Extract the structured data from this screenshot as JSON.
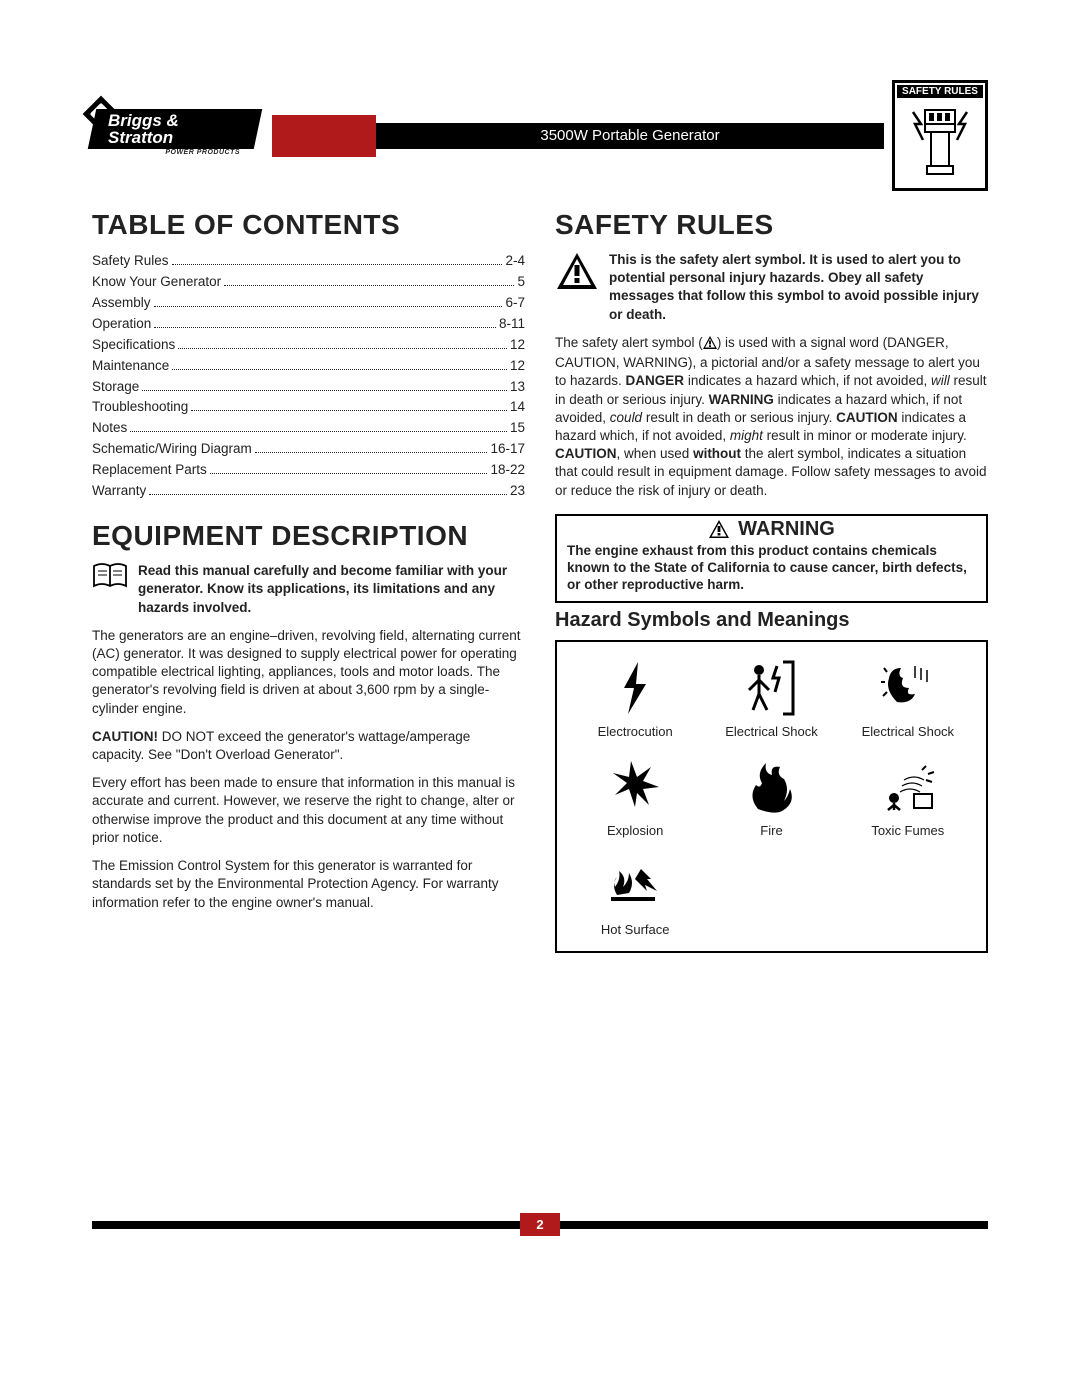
{
  "header": {
    "brand_top": "Briggs & Stratton",
    "brand_sub": "POWER PRODUCTS",
    "title": "3500W Portable Generator",
    "badge_title": "SAFETY RULES"
  },
  "toc_heading": "TABLE OF CONTENTS",
  "toc": [
    {
      "label": "Safety Rules",
      "page": "2-4"
    },
    {
      "label": "Know Your Generator",
      "page": "5"
    },
    {
      "label": "Assembly",
      "page": "6-7"
    },
    {
      "label": "Operation",
      "page": "8-11"
    },
    {
      "label": "Specifications",
      "page": "12"
    },
    {
      "label": "Maintenance",
      "page": "12"
    },
    {
      "label": "Storage",
      "page": "13"
    },
    {
      "label": "Troubleshooting",
      "page": "14"
    },
    {
      "label": "Notes",
      "page": "15"
    },
    {
      "label": "Schematic/Wiring Diagram",
      "page": "16-17"
    },
    {
      "label": "Replacement Parts",
      "page": "18-22"
    },
    {
      "label": "Warranty",
      "page": "23"
    }
  ],
  "equipment": {
    "heading": "EQUIPMENT DESCRIPTION",
    "read_manual": "Read this manual carefully and become familiar with your generator. Know its applications, its limitations and any hazards involved.",
    "p1": "The generators are an engine–driven, revolving field, alternating current (AC) generator. It was designed to supply electrical power for operating compatible electrical lighting, appliances, tools and motor loads. The generator's revolving field is driven at about 3,600 rpm by a single-cylinder engine.",
    "caution_lead": "CAUTION!",
    "caution_rest": " DO NOT exceed the generator's wattage/amperage capacity. See \"Don't Overload Generator\".",
    "p2": "Every effort has been made to ensure that information in this manual is accurate and current. However, we reserve the right to change, alter or otherwise improve the product and this document at any time without prior notice.",
    "p3": "The Emission Control System for this generator is warranted for standards set by the Environmental Protection Agency. For warranty information refer to the engine owner's manual."
  },
  "safety": {
    "heading": "SAFETY RULES",
    "alert_bold": "This is the safety alert symbol. It is used to alert you to potential personal injury hazards. Obey all safety messages that follow this symbol to avoid possible injury or death.",
    "body_1": "The safety alert symbol (",
    "body_2": ") is used with a signal word (DANGER, CAUTION, WARNING), a pictorial and/or a safety message to alert you to hazards. ",
    "danger_b": "DANGER",
    "danger_t": " indicates a hazard which, if not avoided, ",
    "will_i": "will",
    "danger_t2": " result in death or serious injury. ",
    "warning_b": "WARNING",
    "warning_t": " indicates a hazard which, if not avoided, ",
    "could_i": "could",
    "warning_t2": " result in death or serious injury. ",
    "caution_b": "CAUTION",
    "caution_t": " indicates a hazard which, if not avoided, ",
    "might_i": "might",
    "caution_t2": " result in minor or moderate injury. ",
    "caution_b2": "CAUTION",
    "caution_t3": ", when used ",
    "without_b": "without",
    "caution_t4": " the alert symbol, indicates a situation that could result in equipment damage. Follow safety messages to avoid or reduce the risk of injury or death.",
    "warning_head": "WARNING",
    "warning_body": "The engine exhaust from this product contains chemicals known to the State of California to cause cancer, birth defects, or other reproductive harm.",
    "hazard_heading": "Hazard Symbols and Meanings",
    "hazards": [
      "Electrocution",
      "Electrical Shock",
      "Electrical Shock",
      "Explosion",
      "Fire",
      "",
      "Toxic Fumes",
      "Hot Surface",
      ""
    ]
  },
  "page_number": "2",
  "colors": {
    "red": "#b11a1a",
    "black": "#000000",
    "text": "#222222"
  }
}
